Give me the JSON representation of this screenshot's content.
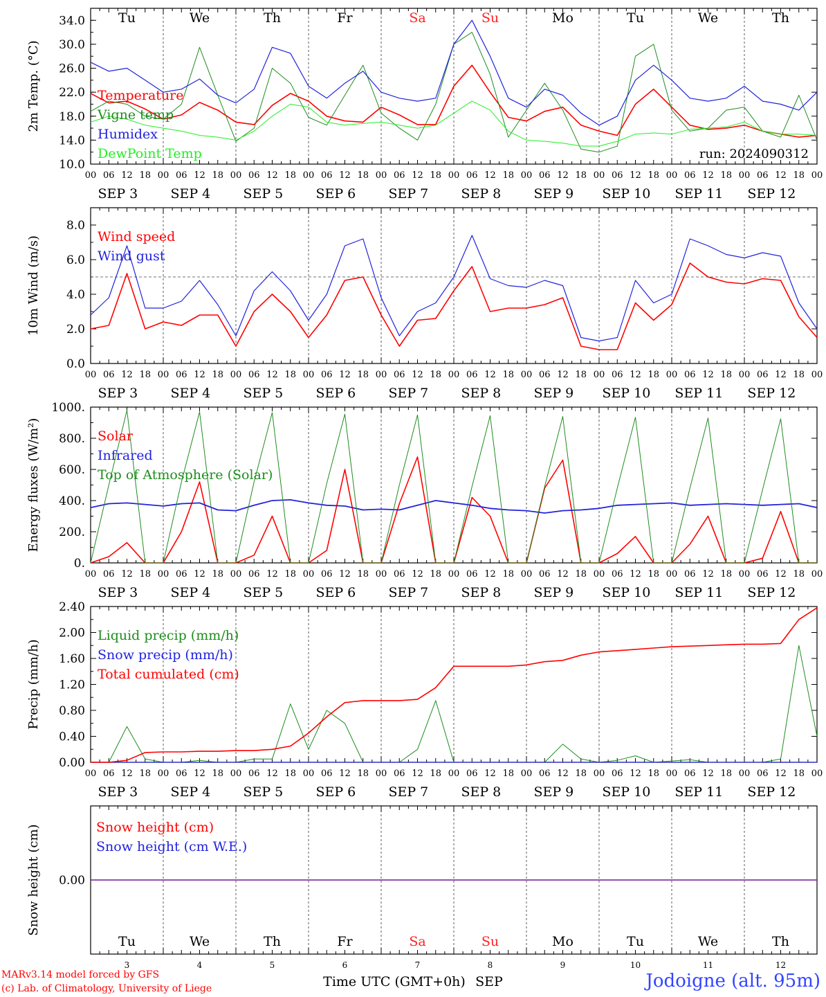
{
  "footer": {
    "credit_line1": "MARv3.14 model forced by GFS",
    "credit_line2": "(c) Lab. of Climatology, University of Liege",
    "station": "Jodoigne (alt. 95m)",
    "time_axis_label": "Time UTC (GMT+0h)",
    "month": "SEP"
  },
  "colors": {
    "red": "#ff0000",
    "green": "#1e8c1e",
    "blue": "#2222dd",
    "light_green": "#22ee22",
    "weekend": "#ff2222",
    "snow_line": "#7a2a9a"
  },
  "chart_data": [
    {
      "type": "line",
      "ylabel": "2m Temp. (°C)",
      "ylim": [
        10,
        36
      ],
      "yticks": [
        "10.0",
        "14.0",
        "18.0",
        "22.0",
        "26.0",
        "30.0",
        "34.0"
      ],
      "ytick_values": [
        10,
        14,
        18,
        22,
        26,
        30,
        34
      ],
      "annotation": "run: 2024090312",
      "day_names": [
        "Tu",
        "We",
        "Th",
        "Fr",
        "Sa",
        "Su",
        "Mo",
        "Tu",
        "We",
        "Th"
      ],
      "x_hours": [
        0,
        6,
        12,
        18,
        24,
        30,
        36,
        42,
        48,
        54,
        60,
        66,
        72,
        78,
        84,
        90,
        96,
        102,
        108,
        114,
        120,
        126,
        132,
        138,
        144,
        150,
        156,
        162,
        168,
        174,
        180,
        186,
        192,
        198,
        204,
        210,
        216,
        222,
        228,
        234,
        240
      ],
      "series": [
        {
          "name": "Temperature",
          "color": "red",
          "values": [
            21.8,
            20.2,
            20.5,
            19.2,
            17.5,
            18.2,
            20.3,
            19.0,
            17.0,
            16.6,
            19.8,
            21.8,
            20.5,
            18.0,
            17.2,
            17.0,
            19.5,
            18.2,
            16.6,
            16.6,
            23.0,
            26.5,
            22.0,
            17.8,
            17.2,
            18.8,
            19.5,
            16.5,
            15.5,
            14.8,
            20.0,
            22.5,
            19.5,
            16.5,
            15.8,
            16.0,
            16.5,
            15.5,
            15.0,
            14.5,
            14.8
          ]
        },
        {
          "name": "Vigne temp",
          "color": "green",
          "values": [
            18.8,
            20.5,
            20.0,
            18.0,
            17.5,
            20.0,
            29.5,
            21.5,
            13.8,
            16.0,
            26.0,
            23.5,
            17.8,
            16.5,
            21.5,
            26.5,
            18.5,
            16.0,
            14.0,
            20.0,
            30.0,
            32.0,
            25.0,
            14.5,
            19.0,
            23.5,
            19.0,
            12.5,
            12.0,
            13.0,
            28.0,
            30.0,
            19.0,
            15.5,
            16.0,
            19.0,
            19.5,
            15.5,
            14.5,
            21.5,
            14.0
          ]
        },
        {
          "name": "Humidex",
          "color": "blue",
          "values": [
            27.0,
            25.5,
            26.0,
            24.0,
            22.0,
            22.5,
            24.2,
            21.5,
            20.2,
            22.5,
            29.5,
            28.5,
            23.0,
            21.0,
            23.5,
            25.5,
            22.0,
            21.0,
            20.5,
            21.0,
            30.0,
            34.0,
            28.0,
            21.0,
            19.5,
            22.5,
            21.5,
            18.5,
            16.5,
            18.0,
            24.0,
            26.5,
            24.0,
            21.0,
            20.5,
            21.0,
            23.0,
            20.5,
            20.0,
            19.0,
            22.0
          ]
        },
        {
          "name": "DewPoint Temp",
          "color": "light_green",
          "values": [
            17.0,
            18.0,
            17.5,
            16.5,
            16.0,
            15.5,
            14.8,
            14.5,
            14.0,
            15.5,
            18.0,
            20.0,
            19.5,
            17.0,
            16.5,
            16.8,
            17.0,
            16.5,
            16.0,
            16.5,
            18.5,
            20.5,
            19.0,
            15.5,
            14.0,
            13.8,
            13.5,
            13.0,
            13.0,
            13.8,
            15.0,
            15.2,
            15.0,
            15.8,
            16.0,
            16.2,
            17.0,
            15.5,
            15.0,
            15.0,
            14.8
          ]
        }
      ]
    },
    {
      "type": "line",
      "ylabel": "10m Wind (m/s)",
      "ylim": [
        0,
        9
      ],
      "yticks": [
        "0.0",
        "2.0",
        "4.0",
        "6.0",
        "8.0"
      ],
      "ytick_values": [
        0,
        2,
        4,
        6,
        8
      ],
      "reference_line": 5,
      "x_hours": [
        0,
        6,
        12,
        18,
        24,
        30,
        36,
        42,
        48,
        54,
        60,
        66,
        72,
        78,
        84,
        90,
        96,
        102,
        108,
        114,
        120,
        126,
        132,
        138,
        144,
        150,
        156,
        162,
        168,
        174,
        180,
        186,
        192,
        198,
        204,
        210,
        216,
        222,
        228,
        234,
        240
      ],
      "series": [
        {
          "name": "Wind speed",
          "color": "red",
          "values": [
            2.0,
            2.2,
            5.2,
            2.0,
            2.4,
            2.2,
            2.8,
            2.8,
            1.0,
            3.0,
            4.0,
            3.0,
            1.5,
            2.8,
            4.8,
            5.0,
            2.8,
            1.0,
            2.5,
            2.6,
            4.2,
            5.6,
            3.0,
            3.2,
            3.2,
            3.4,
            3.8,
            1.0,
            0.8,
            0.8,
            3.5,
            2.5,
            3.4,
            5.8,
            5.0,
            4.7,
            4.6,
            4.9,
            4.8,
            2.7,
            1.5
          ]
        },
        {
          "name": "Wind gust",
          "color": "blue",
          "values": [
            2.8,
            3.8,
            6.8,
            3.2,
            3.2,
            3.6,
            4.8,
            3.4,
            1.6,
            4.2,
            5.3,
            4.2,
            2.5,
            4.0,
            6.8,
            7.2,
            3.8,
            1.6,
            3.0,
            3.5,
            5.0,
            7.4,
            4.9,
            4.5,
            4.4,
            4.8,
            4.5,
            1.5,
            1.3,
            1.5,
            4.8,
            3.5,
            4.0,
            7.2,
            6.8,
            6.3,
            6.1,
            6.4,
            6.2,
            3.5,
            2.0
          ]
        }
      ]
    },
    {
      "type": "line",
      "ylabel": "Energy fluxes (W/m²)",
      "ylim": [
        0,
        1000
      ],
      "yticks": [
        "0.",
        "200.",
        "400.",
        "600.",
        "800.",
        "1000."
      ],
      "ytick_values": [
        0,
        200,
        400,
        600,
        800,
        1000
      ],
      "x_hours": [
        0,
        6,
        12,
        18,
        24,
        30,
        36,
        42,
        48,
        54,
        60,
        66,
        72,
        78,
        84,
        90,
        96,
        102,
        108,
        114,
        120,
        126,
        132,
        138,
        144,
        150,
        156,
        162,
        168,
        174,
        180,
        186,
        192,
        198,
        204,
        210,
        216,
        222,
        228,
        234,
        240
      ],
      "series": [
        {
          "name": "Solar",
          "color": "red",
          "values": [
            0,
            40,
            130,
            0,
            0,
            200,
            520,
            0,
            0,
            50,
            300,
            0,
            0,
            80,
            600,
            0,
            0,
            380,
            680,
            0,
            0,
            420,
            300,
            0,
            0,
            480,
            660,
            0,
            0,
            60,
            170,
            0,
            0,
            120,
            300,
            0,
            0,
            30,
            330,
            0,
            0
          ]
        },
        {
          "name": "Infrared",
          "color": "blue",
          "values": [
            355,
            380,
            385,
            375,
            365,
            380,
            385,
            340,
            335,
            370,
            400,
            405,
            385,
            370,
            365,
            340,
            345,
            340,
            370,
            400,
            385,
            370,
            350,
            340,
            335,
            320,
            335,
            340,
            350,
            370,
            375,
            380,
            385,
            370,
            375,
            380,
            375,
            370,
            375,
            380,
            355
          ]
        },
        {
          "name": "Top of Atmosphere (Solar)",
          "color": "green",
          "values": [
            0,
            500,
            980,
            0,
            0,
            520,
            970,
            0,
            0,
            520,
            965,
            0,
            0,
            510,
            955,
            0,
            0,
            500,
            950,
            0,
            0,
            490,
            945,
            0,
            0,
            490,
            940,
            0,
            0,
            480,
            935,
            0,
            0,
            480,
            930,
            0,
            0,
            470,
            925,
            0,
            0
          ]
        }
      ]
    },
    {
      "type": "line",
      "ylabel": "Precip (mm/h)",
      "ylim": [
        0,
        2.4
      ],
      "yticks": [
        "0.00",
        "0.40",
        "0.80",
        "1.20",
        "1.60",
        "2.00",
        "2.40"
      ],
      "ytick_values": [
        0,
        0.4,
        0.8,
        1.2,
        1.6,
        2.0,
        2.4
      ],
      "x_hours": [
        0,
        6,
        12,
        18,
        24,
        30,
        36,
        42,
        48,
        54,
        60,
        66,
        72,
        78,
        84,
        90,
        96,
        102,
        108,
        114,
        120,
        126,
        132,
        138,
        144,
        150,
        156,
        162,
        168,
        174,
        180,
        186,
        192,
        198,
        204,
        210,
        216,
        222,
        228,
        234,
        240
      ],
      "series": [
        {
          "name": "Liquid precip (mm/h)",
          "color": "green",
          "values": [
            0,
            0,
            0.55,
            0.05,
            0,
            0,
            0.03,
            0,
            0,
            0.05,
            0.05,
            0.9,
            0.2,
            0.8,
            0.6,
            0,
            0,
            0,
            0.2,
            0.95,
            0,
            0,
            0,
            0,
            0,
            0,
            0.28,
            0.05,
            0,
            0.03,
            0.1,
            0,
            0.02,
            0.04,
            0,
            0,
            0,
            0,
            0.05,
            1.8,
            0.4
          ]
        },
        {
          "name": "Snow precip (mm/h)",
          "color": "blue",
          "values": [
            0,
            0,
            0,
            0,
            0,
            0,
            0,
            0,
            0,
            0,
            0,
            0,
            0,
            0,
            0,
            0,
            0,
            0,
            0,
            0,
            0,
            0,
            0,
            0,
            0,
            0,
            0,
            0,
            0,
            0,
            0,
            0,
            0,
            0,
            0,
            0,
            0,
            0,
            0,
            0,
            0
          ]
        },
        {
          "name": "Total cumulated (cm)",
          "color": "red",
          "values": [
            0,
            0,
            0.03,
            0.15,
            0.16,
            0.16,
            0.17,
            0.17,
            0.18,
            0.18,
            0.2,
            0.25,
            0.45,
            0.7,
            0.92,
            0.95,
            0.95,
            0.95,
            0.97,
            1.15,
            1.48,
            1.48,
            1.48,
            1.48,
            1.5,
            1.55,
            1.57,
            1.65,
            1.7,
            1.72,
            1.74,
            1.76,
            1.78,
            1.79,
            1.8,
            1.81,
            1.82,
            1.82,
            1.83,
            2.2,
            2.38
          ]
        }
      ]
    },
    {
      "type": "line",
      "ylabel": "Snow height (cm)",
      "ylim": [
        -1,
        1
      ],
      "yticks": [
        "0.00"
      ],
      "ytick_values": [
        0
      ],
      "day_names": [
        "Tu",
        "We",
        "Th",
        "Fr",
        "Sa",
        "Su",
        "Mo",
        "Tu",
        "We",
        "Th"
      ],
      "day_numbers": [
        "3",
        "4",
        "5",
        "6",
        "7",
        "8",
        "9",
        "10",
        "11",
        "12"
      ],
      "x_hours": [
        0,
        240
      ],
      "series": [
        {
          "name": "Snow height (cm)",
          "color": "red",
          "values": [
            0,
            0
          ]
        },
        {
          "name": "Snow height (cm W.E.)",
          "color": "blue",
          "values": [
            0,
            0
          ]
        }
      ]
    }
  ],
  "x_axis": {
    "hour_labels": [
      "00",
      "06",
      "12",
      "18"
    ],
    "final_hour_label": "00",
    "date_labels": [
      "SEP  3",
      "SEP  4",
      "SEP  5",
      "SEP  6",
      "SEP  7",
      "SEP  8",
      "SEP  9",
      "SEP 10",
      "SEP 11",
      "SEP 12"
    ],
    "weekend_days": [
      4,
      5
    ]
  }
}
